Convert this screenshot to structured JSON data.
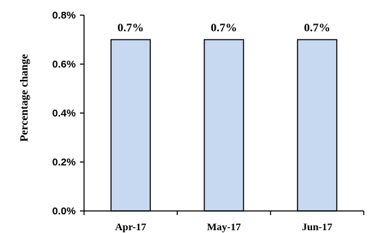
{
  "chart_data": {
    "type": "bar",
    "categories": [
      "Apr-17",
      "May-17",
      "Jun-17"
    ],
    "values": [
      0.7,
      0.7,
      0.7
    ],
    "data_labels": [
      "0.7%",
      "0.7%",
      "0.7%"
    ],
    "ylabel": "Percentage change",
    "xlabel": "",
    "ylim": [
      0,
      0.8
    ],
    "yticks": [
      0,
      0.2,
      0.4,
      0.6,
      0.8
    ],
    "ytick_labels": [
      "0.0%",
      "0.2%",
      "0.4%",
      "0.6%",
      "0.8%"
    ],
    "grid": false,
    "legend": "none",
    "colors": {
      "bar_fill": "#c6d9f1",
      "bar_stroke": "#000000",
      "axis": "#000000"
    }
  }
}
